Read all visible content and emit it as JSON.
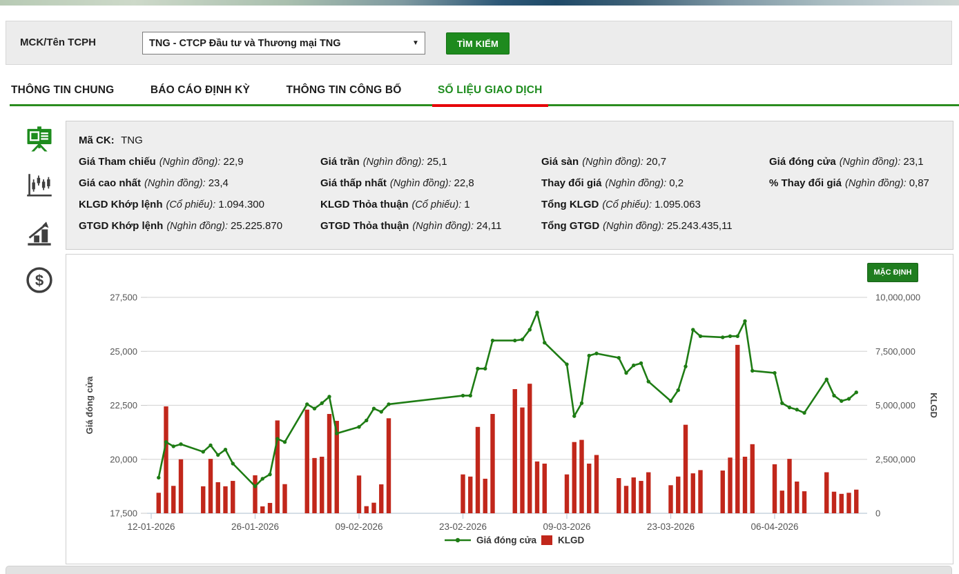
{
  "search_bar": {
    "label": "MCK/Tên TCPH",
    "select_value": "TNG - CTCP Đầu tư và Thương mại TNG",
    "button_label": "TÌM KIẾM"
  },
  "tabs": [
    {
      "label": "THÔNG TIN CHUNG",
      "active": false
    },
    {
      "label": "BÁO CÁO ĐỊNH KỲ",
      "active": false
    },
    {
      "label": "THÔNG TIN CÔNG BỐ",
      "active": false
    },
    {
      "label": "SỐ LIỆU GIAO DỊCH",
      "active": true
    }
  ],
  "sidebar": {
    "items": [
      {
        "icon": "presentation-board-icon",
        "active": true
      },
      {
        "icon": "candlestick-chart-icon",
        "active": false
      },
      {
        "icon": "bar-chart-growth-icon",
        "active": false
      },
      {
        "icon": "dollar-coin-icon",
        "active": false
      }
    ]
  },
  "stock_info": {
    "code_label": "Mã CK:",
    "code_value": "TNG",
    "rows": [
      [
        {
          "label": "Giá Tham chiếu",
          "unit": "(Nghìn đồng):",
          "value": "22,9"
        },
        {
          "label": "Giá trần",
          "unit": "(Nghìn đồng):",
          "value": "25,1"
        },
        {
          "label": "Giá sàn",
          "unit": "(Nghìn đồng):",
          "value": "20,7"
        },
        {
          "label": "Giá đóng cửa",
          "unit": "(Nghìn đồng):",
          "value": "23,1"
        }
      ],
      [
        {
          "label": "Giá cao nhất",
          "unit": "(Nghìn đồng):",
          "value": "23,4"
        },
        {
          "label": "Giá thấp nhất",
          "unit": "(Nghìn đồng):",
          "value": "22,8"
        },
        {
          "label": "Thay đổi giá",
          "unit": "(Nghìn đồng):",
          "value": "0,2"
        },
        {
          "label": "% Thay đổi giá",
          "unit": "(Nghìn đồng):",
          "value": "0,87"
        }
      ],
      [
        {
          "label": "KLGD Khớp lệnh",
          "unit": "(Cổ phiếu):",
          "value": "1.094.300"
        },
        {
          "label": "KLGD Thỏa thuận",
          "unit": "(Cổ phiếu):",
          "value": "1"
        },
        {
          "label": "Tổng KLGD",
          "unit": "(Cổ phiếu):",
          "value": "1.095.063"
        },
        null
      ],
      [
        {
          "label": "GTGD Khớp lệnh",
          "unit": "(Nghìn đồng):",
          "value": "25.225.870"
        },
        {
          "label": "GTGD Thỏa thuận",
          "unit": "(Nghìn đồng):",
          "value": "24,11"
        },
        {
          "label": "Tổng GTGD",
          "unit": "(Nghìn đồng):",
          "value": "25.243.435,11"
        },
        null
      ]
    ]
  },
  "chart_panel": {
    "default_button": "MẶC ĐỊNH"
  },
  "colors": {
    "accent_green": "#1e8a1e",
    "tab_active_green": "#1e8c1e",
    "tab_underline_red": "#e60005",
    "line_green": "#1e7c14",
    "bar_red": "#c1271b",
    "grid_gray": "#d9d9d9",
    "axis_blue_gray": "#bccbd8"
  },
  "chart_data": {
    "type": "line",
    "title": "",
    "x": [
      "13-01-2026",
      "14-01-2026",
      "15-01-2026",
      "16-01-2026",
      "19-01-2026",
      "20-01-2026",
      "21-01-2026",
      "22-01-2026",
      "23-01-2026",
      "26-01-2026",
      "27-01-2026",
      "28-01-2026",
      "29-01-2026",
      "30-01-2026",
      "02-02-2026",
      "03-02-2026",
      "04-02-2026",
      "05-02-2026",
      "06-02-2026",
      "09-02-2026",
      "10-02-2026",
      "11-02-2026",
      "12-02-2026",
      "13-02-2026",
      "23-02-2026",
      "24-02-2026",
      "25-02-2026",
      "26-02-2026",
      "27-02-2026",
      "02-03-2026",
      "03-03-2026",
      "04-03-2026",
      "05-03-2026",
      "06-03-2026",
      "09-03-2026",
      "10-03-2026",
      "11-03-2026",
      "12-03-2026",
      "13-03-2026",
      "16-03-2026",
      "17-03-2026",
      "18-03-2026",
      "19-03-2026",
      "20-03-2026",
      "23-03-2026",
      "24-03-2026",
      "25-03-2026",
      "26-03-2026",
      "27-03-2026",
      "30-03-2026",
      "31-03-2026",
      "01-04-2026",
      "02-04-2026",
      "03-04-2026",
      "06-04-2026",
      "07-04-2026",
      "08-04-2026",
      "09-04-2026",
      "10-04-2026",
      "13-04-2026",
      "14-04-2026",
      "15-04-2026",
      "16-04-2026",
      "17-04-2026"
    ],
    "series": [
      {
        "name": "Giá đóng cửa",
        "type": "line",
        "yaxis": "left",
        "color": "#1e7c14",
        "values": [
          19150,
          20800,
          20600,
          20700,
          20350,
          20650,
          20200,
          20450,
          19800,
          18750,
          19100,
          19300,
          20950,
          20800,
          22550,
          22350,
          22600,
          22900,
          21200,
          21500,
          21800,
          22350,
          22200,
          22550,
          22950,
          22950,
          24200,
          24200,
          25500,
          25500,
          25550,
          26000,
          26800,
          25400,
          24400,
          22000,
          22600,
          24800,
          24900,
          24700,
          24000,
          24350,
          24450,
          23600,
          22700,
          23200,
          24300,
          26000,
          25700,
          25650,
          25700,
          25700,
          26400,
          24100,
          24000,
          22600,
          22400,
          22300,
          22150,
          23700,
          22950,
          22700,
          22800,
          23100
        ]
      },
      {
        "name": "KLGD",
        "type": "bar",
        "yaxis": "right",
        "color": "#c1271b",
        "values": [
          950000,
          4950000,
          1270000,
          2500000,
          1250000,
          2520000,
          1440000,
          1250000,
          1500000,
          1760000,
          320000,
          480000,
          4300000,
          1350000,
          4800000,
          2560000,
          2620000,
          4600000,
          4280000,
          1750000,
          330000,
          490000,
          1340000,
          4400000,
          1800000,
          1700000,
          4000000,
          1600000,
          4600000,
          5750000,
          4900000,
          6000000,
          2400000,
          2300000,
          1800000,
          3300000,
          3400000,
          2300000,
          2700000,
          1630000,
          1270000,
          1660000,
          1500000,
          1900000,
          1300000,
          1700000,
          4100000,
          1850000,
          2000000,
          1980000,
          2580000,
          7800000,
          2620000,
          3200000,
          2270000,
          1050000,
          2520000,
          1470000,
          1020000,
          1900000,
          1000000,
          900000,
          950000,
          1095063
        ]
      }
    ],
    "x_tick_labels": [
      "12-01-2026",
      "26-01-2026",
      "09-02-2026",
      "23-02-2026",
      "09-03-2026",
      "23-03-2026",
      "06-04-2026"
    ],
    "left_axis": {
      "title": "Giá đóng cửa",
      "range": [
        17500,
        27500
      ],
      "ticks": [
        "27,500",
        "25,000",
        "22,500",
        "20,000",
        "17,500"
      ]
    },
    "right_axis": {
      "title": "KLGD",
      "range": [
        0,
        10000000
      ],
      "ticks": [
        "10,000,000",
        "7,500,000",
        "5,000,000",
        "2,500,000",
        "0"
      ]
    },
    "legend": [
      "Giá đóng cửa",
      "KLGD"
    ],
    "legend_position": "bottom",
    "grid": true
  }
}
